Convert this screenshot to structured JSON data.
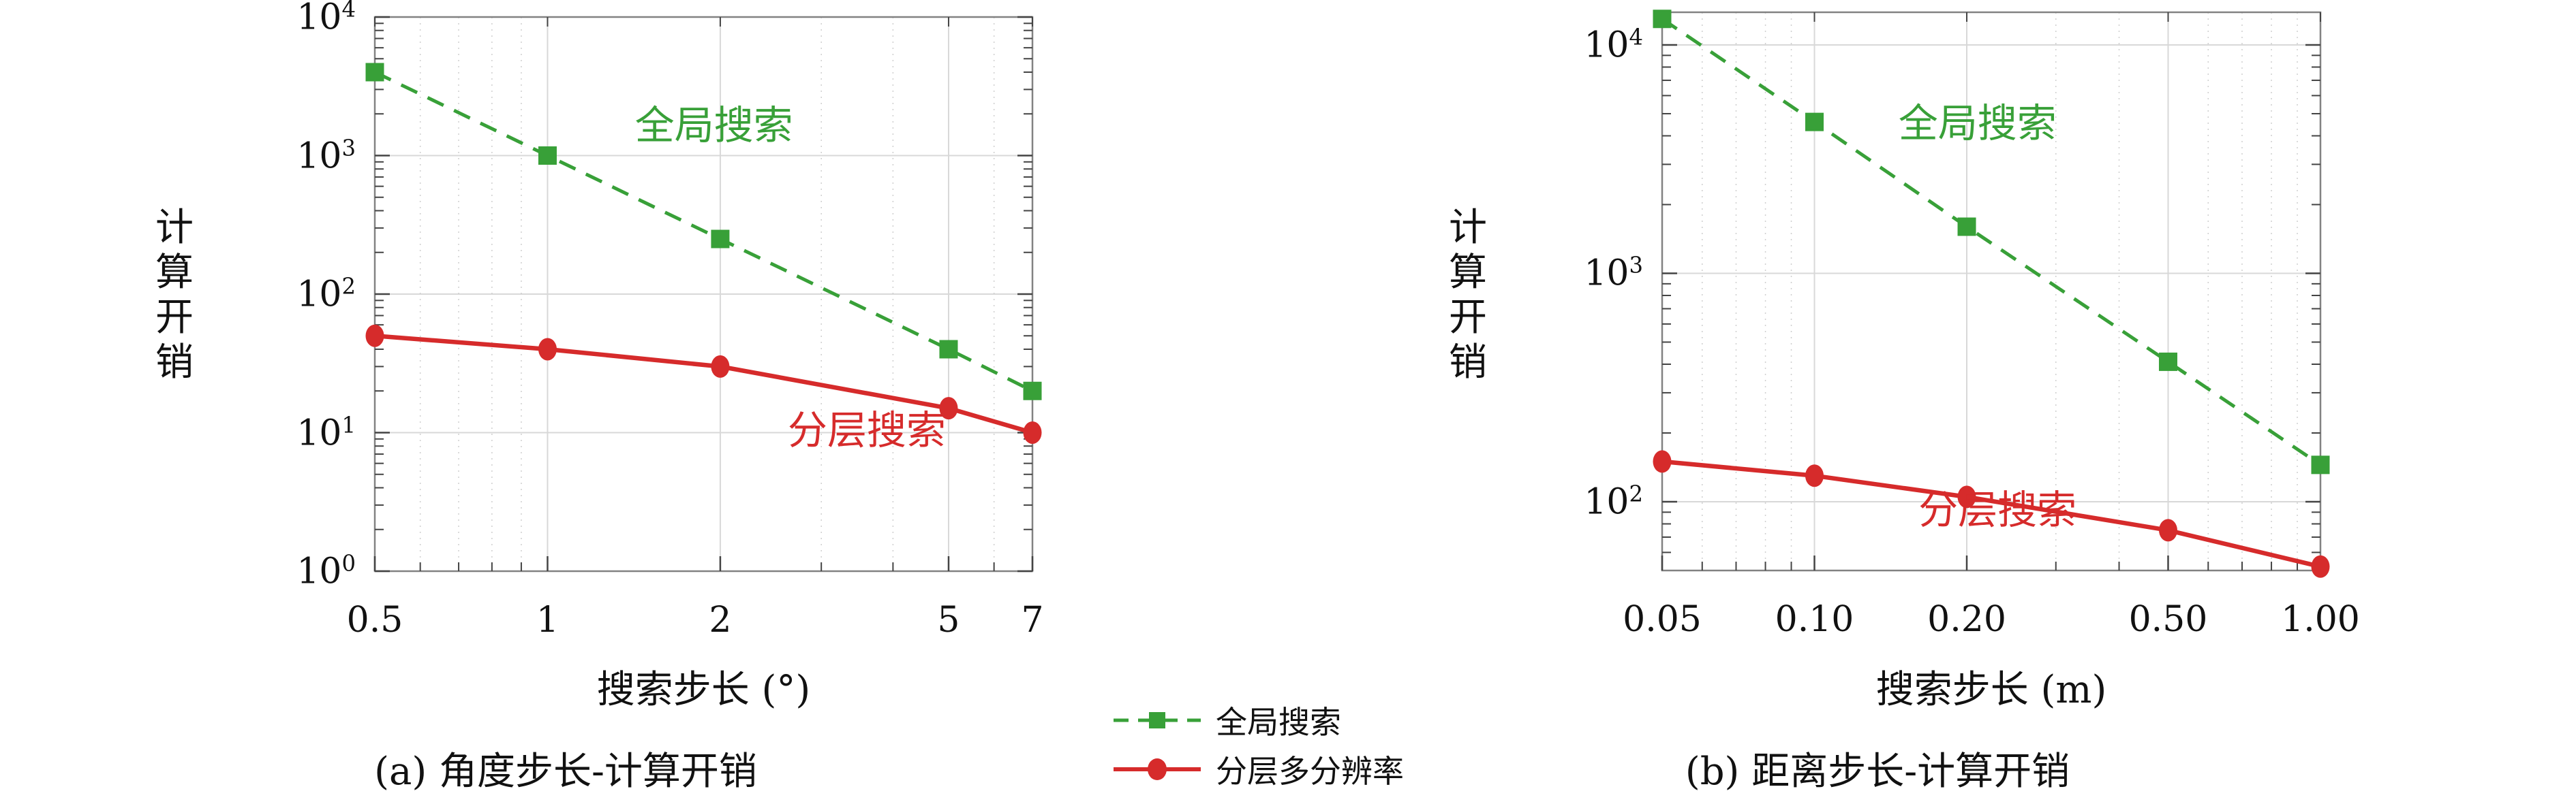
{
  "colors": {
    "global_series": "#38a038",
    "hier_series": "#d62b2b",
    "grid_major": "#d8d8d8",
    "grid_minor": "#cfcfcf",
    "frame": "#828282",
    "tick": "#444444",
    "text": "#111111"
  },
  "legend": {
    "items": [
      {
        "key": "global",
        "label": "全局搜索",
        "line_style": "dashed",
        "marker": "square"
      },
      {
        "key": "hier",
        "label": "分层多分辨率",
        "line_style": "solid",
        "marker": "circle"
      }
    ]
  },
  "chart_data": [
    {
      "id": "a",
      "type": "line",
      "caption": "(a) 角度步长-计算开销",
      "xlabel": "搜索步长 (°)",
      "ylabel": "计算开销",
      "xscale": "log",
      "yscale": "log",
      "grid": true,
      "legend_position": "shared-bottom-center",
      "xlim": [
        0.5,
        7
      ],
      "ylim": [
        1,
        10000
      ],
      "xticks": [
        0.5,
        1,
        2,
        5,
        7
      ],
      "xtick_labels": [
        "0.5",
        "1",
        "2",
        "5",
        "7"
      ],
      "ytick_exponents": [
        0,
        1,
        2,
        3,
        4
      ],
      "xminor": [
        0.6,
        0.7,
        0.8,
        0.9,
        3,
        4,
        6
      ],
      "x": [
        0.5,
        1,
        2,
        5,
        7
      ],
      "series": [
        {
          "key": "global",
          "name": "全局搜索",
          "style": "dashed",
          "marker": "square",
          "values": [
            4000,
            1000,
            250,
            40,
            20
          ],
          "label": {
            "text": "全局搜索",
            "x": 1.95,
            "y": 1750
          }
        },
        {
          "key": "hier",
          "name": "分层搜索",
          "style": "solid",
          "marker": "circle",
          "values": [
            50,
            40,
            30,
            15,
            10
          ],
          "label": {
            "text": "分层搜索",
            "x": 3.6,
            "y": 11
          }
        }
      ]
    },
    {
      "id": "b",
      "type": "line",
      "caption": "(b) 距离步长-计算开销",
      "xlabel": "搜索步长 (m)",
      "ylabel": "计算开销",
      "xscale": "log",
      "yscale": "log",
      "grid": true,
      "legend_position": "shared-bottom-center",
      "xlim": [
        0.05,
        1.0
      ],
      "ylim": [
        50,
        13900
      ],
      "xticks": [
        0.05,
        0.1,
        0.2,
        0.5,
        1.0
      ],
      "xtick_labels": [
        "0.05",
        "0.10",
        "0.20",
        "0.50",
        "1.00"
      ],
      "ytick_exponents": [
        2,
        3,
        4
      ],
      "xminor": [
        0.06,
        0.07,
        0.08,
        0.09,
        0.3,
        0.4,
        0.6,
        0.7,
        0.8,
        0.9
      ],
      "x": [
        0.05,
        0.1,
        0.2,
        0.5,
        1.0
      ],
      "series": [
        {
          "key": "global",
          "name": "全局搜索",
          "style": "dashed",
          "marker": "square",
          "values": [
            13000,
            4600,
            1600,
            410,
            145
          ],
          "label": {
            "text": "全局搜索",
            "x": 0.21,
            "y": 4700
          }
        },
        {
          "key": "hier",
          "name": "分层搜索",
          "style": "solid",
          "marker": "circle",
          "values": [
            150,
            130,
            105,
            75,
            52
          ],
          "label": {
            "text": "分层搜索",
            "x": 0.23,
            "y": 95
          }
        }
      ]
    }
  ]
}
